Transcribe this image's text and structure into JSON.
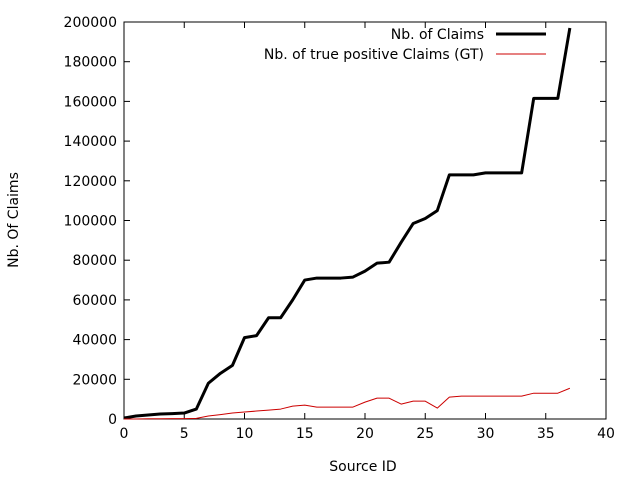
{
  "chart_data": {
    "type": "line",
    "title": "",
    "xlabel": "Source ID",
    "ylabel": "Nb. Of Claims",
    "xlim": [
      0,
      40
    ],
    "ylim": [
      0,
      200000
    ],
    "xticks": [
      0,
      5,
      10,
      15,
      20,
      25,
      30,
      35,
      40
    ],
    "yticks": [
      0,
      20000,
      40000,
      60000,
      80000,
      100000,
      120000,
      140000,
      160000,
      180000,
      200000
    ],
    "grid": false,
    "legend_position": "top-right",
    "series": [
      {
        "name": "Nb. of Claims",
        "color": "#000000",
        "x": [
          0,
          1,
          2,
          3,
          4,
          5,
          6,
          7,
          8,
          9,
          10,
          11,
          12,
          13,
          14,
          15,
          16,
          17,
          18,
          19,
          20,
          21,
          22,
          23,
          24,
          25,
          26,
          27,
          28,
          29,
          30,
          31,
          32,
          33,
          34,
          35,
          36,
          37
        ],
        "values": [
          500,
          1500,
          2000,
          2500,
          2700,
          3000,
          5000,
          18000,
          23000,
          27000,
          41000,
          42000,
          51000,
          51000,
          60000,
          70000,
          71000,
          71000,
          71000,
          71500,
          74500,
          78500,
          79000,
          89000,
          98500,
          101000,
          105000,
          123000,
          123000,
          123000,
          124000,
          124000,
          124000,
          124000,
          161500,
          161500,
          161500,
          197000
        ]
      },
      {
        "name": "Nb. of true positive Claims (GT)",
        "color": "#cc0000",
        "x": [
          0,
          1,
          2,
          3,
          4,
          5,
          6,
          7,
          8,
          9,
          10,
          11,
          12,
          13,
          14,
          15,
          16,
          17,
          18,
          19,
          20,
          21,
          22,
          23,
          24,
          25,
          26,
          27,
          28,
          29,
          30,
          31,
          32,
          33,
          34,
          35,
          36,
          37
        ],
        "values": [
          0,
          0,
          100,
          150,
          200,
          200,
          300,
          1500,
          2200,
          3000,
          3500,
          4000,
          4500,
          5000,
          6500,
          7000,
          6000,
          6000,
          6000,
          6000,
          8500,
          10500,
          10500,
          7500,
          9000,
          9000,
          5500,
          11000,
          11500,
          11500,
          11500,
          11500,
          11500,
          11500,
          13000,
          13000,
          13000,
          15500
        ]
      }
    ]
  }
}
